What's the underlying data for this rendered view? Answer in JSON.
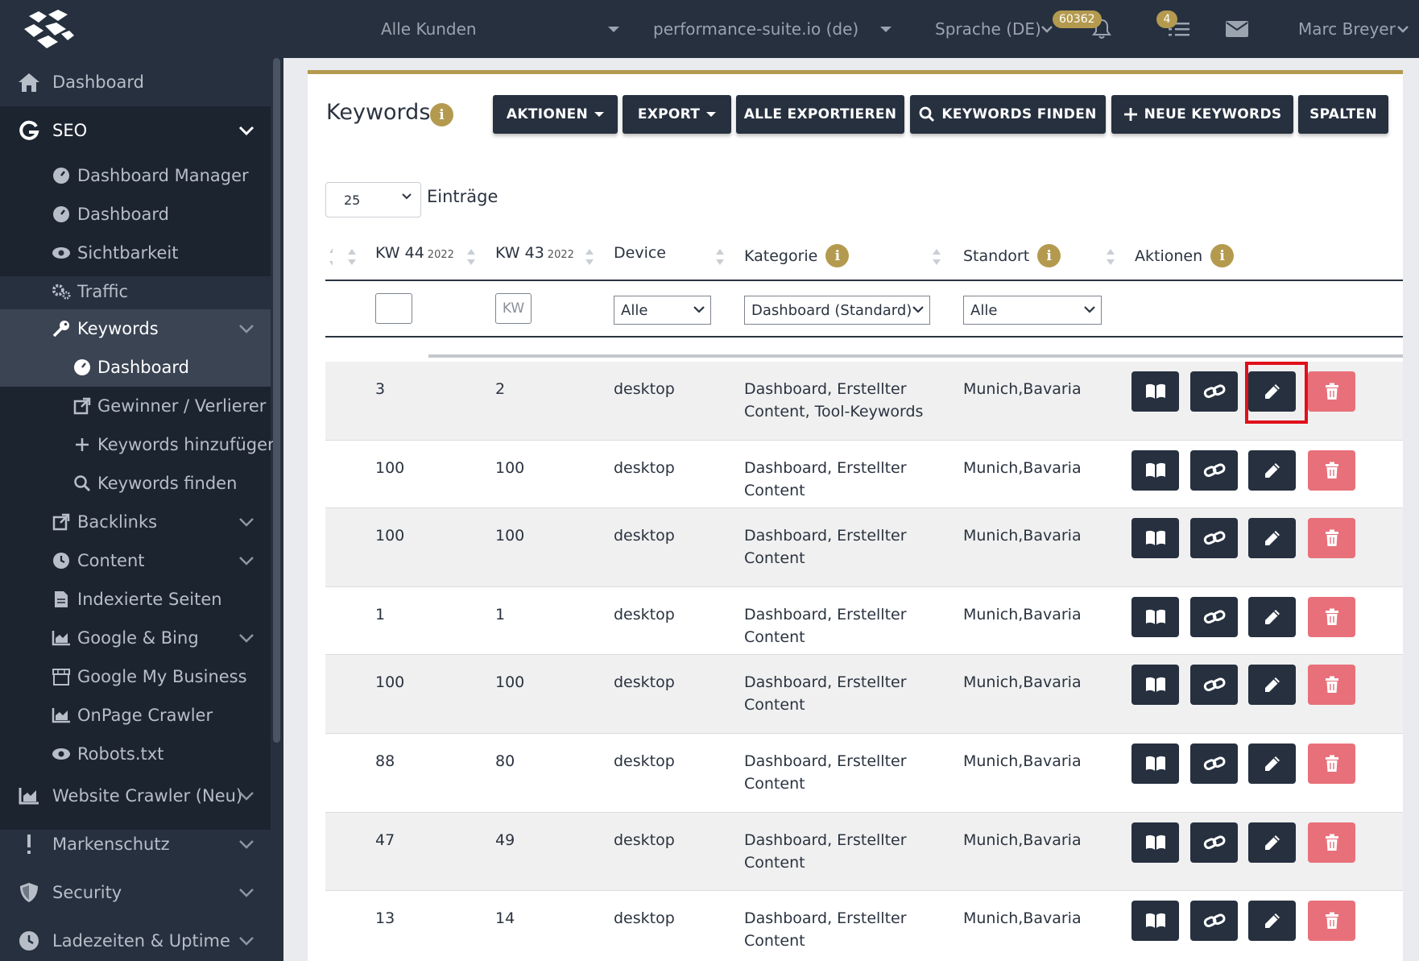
{
  "topbar": {
    "customer_select": "Alle Kunden",
    "project_select": "performance-suite.io (de)",
    "language_label": "Sprache (DE)",
    "notifications_badge": "60362",
    "tasks_badge": "4",
    "user_name": "Marc Breyer"
  },
  "sidebar": {
    "dashboard": "Dashboard",
    "seo": "SEO",
    "dashboard_manager": "Dashboard Manager",
    "seo_dashboard": "Dashboard",
    "sichtbarkeit": "Sichtbarkeit",
    "traffic": "Traffic",
    "keywords": "Keywords",
    "keywords_dashboard": "Dashboard",
    "gewinner_verlierer": "Gewinner / Verlierer",
    "keywords_hinzufuegen": "Keywords hinzufügen",
    "keywords_finden": "Keywords finden",
    "backlinks": "Backlinks",
    "content": "Content",
    "indexierte_seiten": "Indexierte Seiten",
    "google_bing": "Google & Bing",
    "google_my_business": "Google My Business",
    "onpage_crawler": "OnPage Crawler",
    "robots": "Robots.txt",
    "website_crawler": "Website Crawler (Neu)",
    "markenschutz": "Markenschutz",
    "security": "Security",
    "ladezeiten": "Ladezeiten & Uptime"
  },
  "page": {
    "title": "Keywords",
    "info_glyph": "i",
    "buttons": {
      "aktionen": "AKTIONEN",
      "export": "EXPORT",
      "alle_exportieren": "ALLE EXPORTIEREN",
      "keywords_finden": "KEYWORDS FINDEN",
      "neue_keywords": "NEUE KEYWORDS",
      "spalten": "SPALTEN"
    },
    "entries_value": "25",
    "entries_label": "Einträge"
  },
  "table": {
    "headers": {
      "kw44": "KW 44",
      "kw44_year": "2022",
      "kw43": "KW 43",
      "kw43_year": "2022",
      "device": "Device",
      "kategorie": "Kategorie",
      "standort": "Standort",
      "aktionen": "Aktionen"
    },
    "filters": {
      "kw43_placeholder": "KW",
      "device": "Alle",
      "kategorie": "Dashboard (Standard)",
      "standort": "Alle"
    },
    "rows": [
      {
        "kw44": "3",
        "kw43": "2",
        "device": "desktop",
        "kategorie_1": "Dashboard, Erstellter",
        "kategorie_2": "Content, Tool-Keywords",
        "standort": "Munich,Bavaria"
      },
      {
        "kw44": "100",
        "kw43": "100",
        "device": "desktop",
        "kategorie_1": "Dashboard, Erstellter",
        "kategorie_2": "Content",
        "standort": "Munich,Bavaria"
      },
      {
        "kw44": "100",
        "kw43": "100",
        "device": "desktop",
        "kategorie_1": "Dashboard, Erstellter",
        "kategorie_2": "Content",
        "standort": "Munich,Bavaria"
      },
      {
        "kw44": "1",
        "kw43": "1",
        "device": "desktop",
        "kategorie_1": "Dashboard, Erstellter",
        "kategorie_2": "Content",
        "standort": "Munich,Bavaria"
      },
      {
        "kw44": "100",
        "kw43": "100",
        "device": "desktop",
        "kategorie_1": "Dashboard, Erstellter",
        "kategorie_2": "Content",
        "standort": "Munich,Bavaria"
      },
      {
        "kw44": "88",
        "kw43": "80",
        "device": "desktop",
        "kategorie_1": "Dashboard, Erstellter",
        "kategorie_2": "Content",
        "standort": "Munich,Bavaria"
      },
      {
        "kw44": "47",
        "kw43": "49",
        "device": "desktop",
        "kategorie_1": "Dashboard, Erstellter",
        "kategorie_2": "Content",
        "standort": "Munich,Bavaria"
      },
      {
        "kw44": "13",
        "kw43": "14",
        "device": "desktop",
        "kategorie_1": "Dashboard, Erstellter",
        "kategorie_2": "Content",
        "standort": "Munich,Bavaria"
      }
    ]
  },
  "colors": {
    "dark": "#26303f",
    "gold": "#b49a4f",
    "delete_red": "#e8707a",
    "highlight_red": "#e0101b"
  }
}
